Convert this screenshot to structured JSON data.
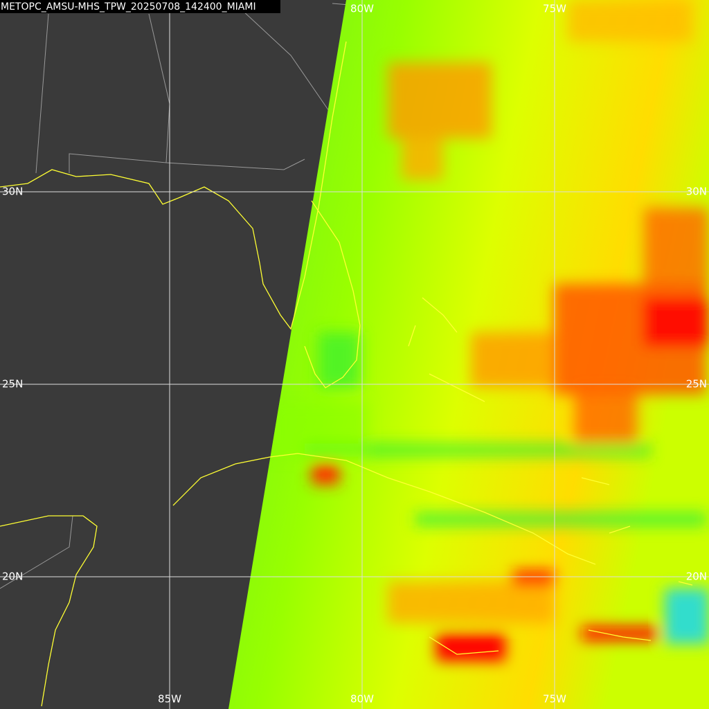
{
  "title": "METOPC_AMSU-MHS_TPW_20250708_142400_MIAMI",
  "grid_labels": {
    "top": [
      "80W",
      "75W"
    ],
    "bottom": [
      "85W",
      "80W",
      "75W"
    ],
    "left": [
      "30N",
      "25N",
      "20N"
    ],
    "right": [
      "30N",
      "25N",
      "20N"
    ]
  }
}
